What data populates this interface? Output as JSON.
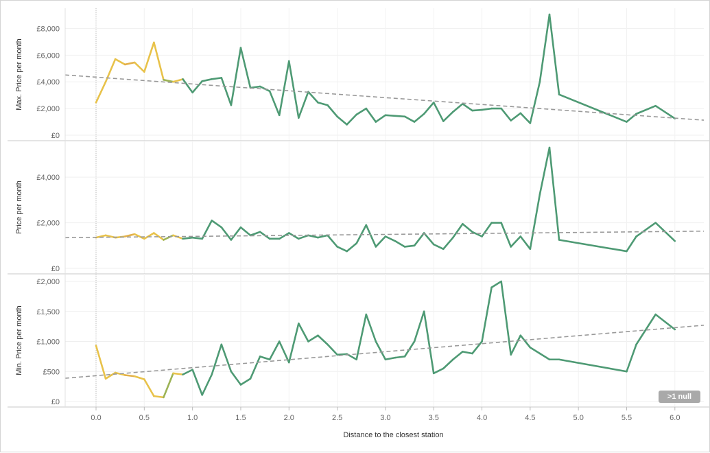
{
  "chart_data": {
    "type": "line",
    "xlabel": "Distance to the closest station",
    "xlim": [
      -0.32,
      6.3
    ],
    "x_ticks": [
      "0.0",
      "0.5",
      "1.0",
      "1.5",
      "2.0",
      "2.5",
      "3.0",
      "3.5",
      "4.0",
      "4.5",
      "5.0",
      "5.5",
      "6.0"
    ],
    "x": [
      0.0,
      0.1,
      0.2,
      0.3,
      0.4,
      0.5,
      0.6,
      0.7,
      0.8,
      0.9,
      1.0,
      1.1,
      1.2,
      1.3,
      1.4,
      1.5,
      1.6,
      1.7,
      1.8,
      1.9,
      2.0,
      2.1,
      2.2,
      2.3,
      2.4,
      2.5,
      2.6,
      2.7,
      2.8,
      2.9,
      3.0,
      3.1,
      3.2,
      3.3,
      3.4,
      3.5,
      3.6,
      3.7,
      3.8,
      3.9,
      4.0,
      4.1,
      4.2,
      4.3,
      4.4,
      4.5,
      4.6,
      4.7,
      4.8,
      5.5,
      5.6,
      5.8,
      6.0
    ],
    "color_scale": {
      "low": "#4e9a74",
      "mid": "#e8c24a",
      "high": "#d1674b"
    },
    "panels": [
      {
        "name": "max-price",
        "ylabel": "Max. Price per month",
        "ylim": [
          0,
          9050
        ],
        "y_ticks": [
          0,
          2000,
          4000,
          6000,
          8000
        ],
        "y_tick_labels": [
          "£0",
          "£2,000",
          "£4,000",
          "£6,000",
          "£8,000"
        ],
        "values": [
          2450,
          4000,
          5700,
          5300,
          5450,
          4750,
          6950,
          4150,
          4000,
          4200,
          3200,
          4050,
          4200,
          4300,
          2250,
          6550,
          3550,
          3650,
          3300,
          1500,
          5550,
          1300,
          3250,
          2450,
          2250,
          1400,
          800,
          1550,
          2000,
          1000,
          1500,
          1450,
          1400,
          1000,
          1600,
          2450,
          1050,
          1750,
          2350,
          1850,
          1900,
          2000,
          2000,
          1100,
          1650,
          900,
          4000,
          9050,
          3050,
          1000,
          1600,
          2200,
          1250
        ],
        "trend": [
          4350,
          1280
        ]
      },
      {
        "name": "price",
        "ylabel": "Price per month",
        "ylim": [
          0,
          5300
        ],
        "y_ticks": [
          0,
          2000,
          4000
        ],
        "y_tick_labels": [
          "£0",
          "£2,000",
          "£4,000"
        ],
        "values": [
          1350,
          1450,
          1350,
          1400,
          1500,
          1300,
          1550,
          1250,
          1450,
          1300,
          1350,
          1300,
          2100,
          1800,
          1250,
          1800,
          1450,
          1600,
          1300,
          1300,
          1550,
          1300,
          1450,
          1350,
          1450,
          950,
          750,
          1100,
          1900,
          950,
          1400,
          1200,
          950,
          1000,
          1550,
          1050,
          850,
          1350,
          1950,
          1600,
          1400,
          2000,
          2000,
          950,
          1400,
          850,
          3250,
          5300,
          1250,
          750,
          1400,
          2000,
          1200
        ],
        "trend": [
          1360,
          1620
        ]
      },
      {
        "name": "min-price",
        "ylabel": "Min. Price per month",
        "ylim": [
          0,
          2000
        ],
        "y_ticks": [
          0,
          500,
          1000,
          1500,
          2000
        ],
        "y_tick_labels": [
          "£0",
          "£500",
          "£1,000",
          "£1,500",
          "£2,000"
        ],
        "values": [
          930,
          380,
          480,
          440,
          420,
          370,
          90,
          70,
          470,
          450,
          530,
          110,
          450,
          950,
          500,
          280,
          380,
          750,
          700,
          1000,
          650,
          1300,
          1000,
          1100,
          950,
          780,
          790,
          700,
          1450,
          1000,
          700,
          730,
          750,
          1000,
          1500,
          470,
          550,
          700,
          830,
          800,
          1000,
          1900,
          2000,
          780,
          1100,
          900,
          800,
          700,
          700,
          500,
          950,
          1450,
          1200
        ],
        "trend": [
          430,
          1230
        ]
      }
    ],
    "badge": ">1 null"
  }
}
